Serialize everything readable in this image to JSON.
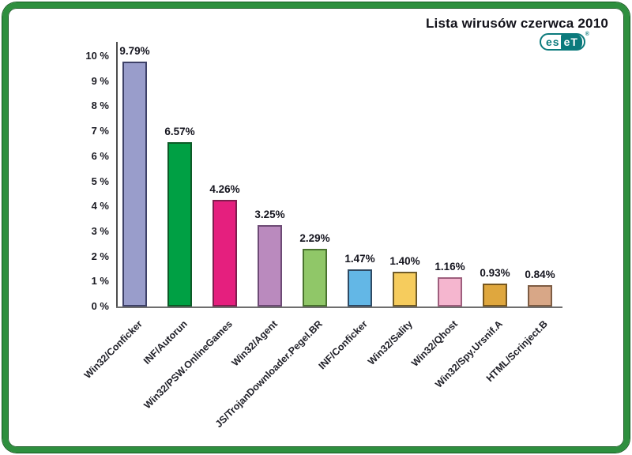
{
  "header": {
    "title": "Lista wirusów czerwca 2010",
    "logo": {
      "left": "es",
      "right": "eT",
      "mark": "®"
    }
  },
  "colors": {
    "frame_green": "#2e8f3e",
    "frame_edge": "#14571f",
    "logo_teal": "#0b7a7c",
    "axis": "#4d4d4d",
    "text": "#14141e"
  },
  "chart_data": {
    "type": "bar",
    "title": "Lista wirusów czerwca 2010",
    "categories": [
      "Win32/Conficker",
      "INF/Autorun",
      "Win32/PSW.OnlineGames",
      "Win32/Agent",
      "JS/TrojanDownloader.Pegel.BR",
      "INF/Conficker",
      "Win32/Sality",
      "Win32/Qhost",
      "Win32/Spy.Ursnif.A",
      "HTML/Scrinject.B"
    ],
    "values": [
      9.79,
      6.57,
      4.26,
      3.25,
      2.29,
      1.47,
      1.4,
      1.16,
      0.93,
      0.84
    ],
    "value_labels": [
      "9.79%",
      "6.57%",
      "4.26%",
      "3.25%",
      "2.29%",
      "1.47%",
      "1.40%",
      "1.16%",
      "0.93%",
      "0.84%"
    ],
    "bar_colors": [
      "#999dcb",
      "#00a044",
      "#e51f7e",
      "#ba8abe",
      "#90c768",
      "#63b7e6",
      "#f6cc5d",
      "#f5b6cf",
      "#dfa73e",
      "#d8a787"
    ],
    "bar_border_colors": [
      "#3e4168",
      "#0c5a26",
      "#7e1e4e",
      "#6d4a75",
      "#49732e",
      "#2f4a63",
      "#6e5a28",
      "#9e5e7d",
      "#77571e",
      "#7d5c43"
    ],
    "xlabel": "",
    "ylabel": "",
    "ylim": [
      0,
      10
    ],
    "ytick_labels": [
      "0 %",
      "1 %",
      "2 %",
      "3 %",
      "4 %",
      "5 %",
      "6 %",
      "7 %",
      "8 %",
      "9 %",
      "10 %"
    ],
    "grid": false,
    "legend": "none"
  }
}
